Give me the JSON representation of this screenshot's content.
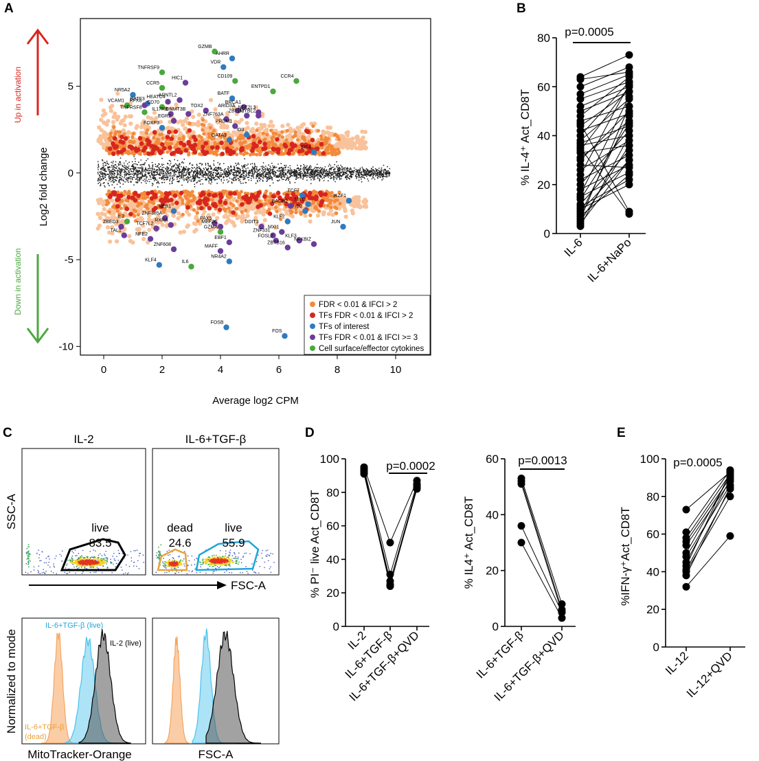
{
  "panel_labels": {
    "A": "A",
    "B": "B",
    "C": "C",
    "D": "D",
    "E": "E"
  },
  "colors": {
    "orange_light": "#f9c29a",
    "orange": "#f28a3c",
    "red": "#d7261e",
    "blue": "#2f7bbf",
    "purple": "#6a3d9a",
    "green": "#4aa83d",
    "black": "#000000",
    "arrow_red": "#d7261e",
    "arrow_green": "#4aa83d",
    "cyan": "#1fa6d9",
    "gate_orange": "#e8a13a"
  },
  "chart_data": [
    {
      "id": "A",
      "type": "scatter",
      "title": "",
      "xlabel": "Average log2 CPM",
      "ylabel": "Log2 fold change",
      "xlim": [
        -0.8,
        11.2
      ],
      "ylim": [
        -10.5,
        8.9
      ],
      "xticks": [
        0,
        2,
        4,
        6,
        8,
        10
      ],
      "yticks": [
        -10,
        -5,
        0,
        5
      ],
      "arrow_up_label": "Up in activation",
      "arrow_down_label": "Down in activation",
      "legend": [
        {
          "label": "FDR < 0.01 & IFCI > 2",
          "color": "orange"
        },
        {
          "label": "TFs FDR < 0.01 & IFCI > 2",
          "color": "red"
        },
        {
          "label": "TFs of interest",
          "color": "blue"
        },
        {
          "label": "TFs FDR < 0.01 & IFCI >= 3",
          "color": "purple"
        },
        {
          "label": "Cell surface/effector cytokines",
          "color": "green"
        }
      ],
      "genes": [
        {
          "name": "GZMB",
          "x": 3.8,
          "y": 7.0,
          "c": "green"
        },
        {
          "name": "AHRR",
          "x": 4.4,
          "y": 6.6,
          "c": "blue"
        },
        {
          "name": "VDR",
          "x": 4.1,
          "y": 6.1,
          "c": "blue"
        },
        {
          "name": "TNFRSF9",
          "x": 2.0,
          "y": 5.8,
          "c": "green"
        },
        {
          "name": "CCR4",
          "x": 6.6,
          "y": 5.3,
          "c": "green"
        },
        {
          "name": "HIC1",
          "x": 2.8,
          "y": 5.2,
          "c": "purple"
        },
        {
          "name": "CD109",
          "x": 4.5,
          "y": 5.3,
          "c": "green"
        },
        {
          "name": "CCR5",
          "x": 2.0,
          "y": 4.9,
          "c": "green"
        },
        {
          "name": "ENTPD1",
          "x": 5.8,
          "y": 4.7,
          "c": "green"
        },
        {
          "name": "NR5A2",
          "x": 1.0,
          "y": 4.5,
          "c": "blue"
        },
        {
          "name": "ARNTL2",
          "x": 2.6,
          "y": 4.2,
          "c": "purple"
        },
        {
          "name": "BATF",
          "x": 4.4,
          "y": 4.3,
          "c": "blue"
        },
        {
          "name": "HEATC4",
          "x": 2.2,
          "y": 4.1,
          "c": "purple"
        },
        {
          "name": "BATF3",
          "x": 1.5,
          "y": 4.0,
          "c": "blue"
        },
        {
          "name": "BRCA1",
          "x": 4.8,
          "y": 3.8,
          "c": "purple"
        },
        {
          "name": "VCAM1",
          "x": 0.8,
          "y": 3.9,
          "c": "green"
        },
        {
          "name": "RFX8",
          "x": 1.4,
          "y": 3.9,
          "c": "purple"
        },
        {
          "name": "CD70",
          "x": 2.0,
          "y": 3.8,
          "c": "green"
        },
        {
          "name": "TOX2",
          "x": 3.5,
          "y": 3.6,
          "c": "purple"
        },
        {
          "name": "ARID3A",
          "x": 4.6,
          "y": 3.6,
          "c": "purple"
        },
        {
          "name": "NFE2L3",
          "x": 5.3,
          "y": 3.5,
          "c": "purple"
        },
        {
          "name": "TNFRSF8",
          "x": 1.4,
          "y": 3.5,
          "c": "green"
        },
        {
          "name": "IL17RB",
          "x": 2.3,
          "y": 3.4,
          "c": "purple"
        },
        {
          "name": "DNMT3B",
          "x": 2.9,
          "y": 3.4,
          "c": "purple"
        },
        {
          "name": "ZBED2",
          "x": 4.9,
          "y": 3.3,
          "c": "purple"
        },
        {
          "name": "MYBL2",
          "x": 5.3,
          "y": 3.3,
          "c": "purple"
        },
        {
          "name": "EGR2",
          "x": 2.4,
          "y": 3.0,
          "c": "purple"
        },
        {
          "name": "ZNF763A",
          "x": 4.2,
          "y": 3.1,
          "c": "purple"
        },
        {
          "name": "PRDM1",
          "x": 4.5,
          "y": 2.7,
          "c": "purple"
        },
        {
          "name": "FOXP3",
          "x": 2.0,
          "y": 2.6,
          "c": "blue"
        },
        {
          "name": "ID3",
          "x": 4.9,
          "y": 2.2,
          "c": "blue"
        },
        {
          "name": "GATA3",
          "x": 4.3,
          "y": 1.9,
          "c": "blue"
        },
        {
          "name": "IRF4",
          "x": 7.2,
          "y": 1.2,
          "c": "blue"
        },
        {
          "name": "TCF7",
          "x": 6.8,
          "y": -1.3,
          "c": "blue"
        },
        {
          "name": "BACH2",
          "x": 6.4,
          "y": -1.9,
          "c": "purple"
        },
        {
          "name": "MYC",
          "x": 7.0,
          "y": -1.8,
          "c": "blue"
        },
        {
          "name": "ID2",
          "x": 6.9,
          "y": -2.2,
          "c": "blue"
        },
        {
          "name": "IKZF1",
          "x": 8.4,
          "y": -1.6,
          "c": "blue"
        },
        {
          "name": "NEB1",
          "x": 2.4,
          "y": -2.2,
          "c": "blue"
        },
        {
          "name": "ZNF385A",
          "x": 2.1,
          "y": -2.6,
          "c": "purple"
        },
        {
          "name": "IL7",
          "x": 0.8,
          "y": -2.8,
          "c": "green"
        },
        {
          "name": "RXRA",
          "x": 2.3,
          "y": -3.0,
          "c": "purple"
        },
        {
          "name": "ZBED3",
          "x": 0.6,
          "y": -3.1,
          "c": "purple"
        },
        {
          "name": "TCF7L2",
          "x": 1.8,
          "y": -3.2,
          "c": "purple"
        },
        {
          "name": "PAX5",
          "x": 3.8,
          "y": -2.9,
          "c": "purple"
        },
        {
          "name": "MEF2C",
          "x": 4.0,
          "y": -3.1,
          "c": "purple"
        },
        {
          "name": "DDIT3",
          "x": 5.4,
          "y": -3.1,
          "c": "purple"
        },
        {
          "name": "KLF2",
          "x": 6.3,
          "y": -2.8,
          "c": "blue"
        },
        {
          "name": "JUN",
          "x": 8.2,
          "y": -3.1,
          "c": "blue"
        },
        {
          "name": "TAL1",
          "x": 0.7,
          "y": -3.6,
          "c": "purple"
        },
        {
          "name": "NFE2",
          "x": 1.6,
          "y": -3.8,
          "c": "purple"
        },
        {
          "name": "GZMA",
          "x": 4.0,
          "y": -3.4,
          "c": "green"
        },
        {
          "name": "MXI1",
          "x": 6.1,
          "y": -3.4,
          "c": "purple"
        },
        {
          "name": "ZNF331",
          "x": 5.8,
          "y": -3.6,
          "c": "purple"
        },
        {
          "name": "FOSL2",
          "x": 5.9,
          "y": -3.9,
          "c": "purple"
        },
        {
          "name": "KLF3",
          "x": 6.7,
          "y": -3.9,
          "c": "purple"
        },
        {
          "name": "NFKBIZ",
          "x": 7.2,
          "y": -4.1,
          "c": "purple"
        },
        {
          "name": "EBF1",
          "x": 4.3,
          "y": -4.0,
          "c": "purple"
        },
        {
          "name": "ZBTB16",
          "x": 6.3,
          "y": -4.3,
          "c": "purple"
        },
        {
          "name": "MAFF",
          "x": 4.0,
          "y": -4.5,
          "c": "purple"
        },
        {
          "name": "ZNF608",
          "x": 2.4,
          "y": -4.4,
          "c": "purple"
        },
        {
          "name": "NR4A2",
          "x": 4.3,
          "y": -5.1,
          "c": "blue"
        },
        {
          "name": "KLF4",
          "x": 1.9,
          "y": -5.3,
          "c": "blue"
        },
        {
          "name": "IL6",
          "x": 3.0,
          "y": -5.4,
          "c": "green"
        },
        {
          "name": "FOSB",
          "x": 4.2,
          "y": -8.9,
          "c": "blue"
        },
        {
          "name": "FOS",
          "x": 6.2,
          "y": -9.4,
          "c": "blue"
        }
      ]
    },
    {
      "id": "B",
      "type": "paired_dot",
      "ylabel": "% IL-4⁺ Act_CD8T",
      "ylim": [
        0,
        80
      ],
      "yticks": [
        0,
        20,
        40,
        60,
        80
      ],
      "categories": [
        "IL-6",
        "IL-6+NaPo"
      ],
      "pvalue": "p=0.0005",
      "pairs": [
        [
          64,
          73
        ],
        [
          63,
          66
        ],
        [
          57,
          65
        ],
        [
          55,
          62
        ],
        [
          52,
          60
        ],
        [
          48,
          64
        ],
        [
          46,
          52
        ],
        [
          44,
          58
        ],
        [
          42,
          49
        ],
        [
          40,
          62
        ],
        [
          38,
          55
        ],
        [
          37,
          44
        ],
        [
          36,
          40
        ],
        [
          34,
          60
        ],
        [
          33,
          36
        ],
        [
          31,
          46
        ],
        [
          30,
          50
        ],
        [
          28,
          27
        ],
        [
          26,
          38
        ],
        [
          24,
          61
        ],
        [
          22,
          32
        ],
        [
          20,
          42
        ],
        [
          18,
          28
        ],
        [
          16,
          56
        ],
        [
          15,
          25
        ],
        [
          14,
          45
        ],
        [
          12,
          34
        ],
        [
          11,
          22
        ],
        [
          10,
          20
        ],
        [
          9,
          30
        ],
        [
          8,
          48
        ],
        [
          7,
          24
        ],
        [
          6,
          52
        ],
        [
          5,
          36
        ],
        [
          4,
          30
        ],
        [
          3,
          40
        ],
        [
          45,
          9
        ],
        [
          35,
          8
        ],
        [
          50,
          58
        ],
        [
          60,
          68
        ]
      ]
    },
    {
      "id": "C",
      "type": "flow_cytometry",
      "top_titles": [
        "IL-2",
        "IL-6+TGF-β"
      ],
      "ylabel_top": "SSC-A",
      "xlabel_top": "FSC-A",
      "gates": [
        {
          "panel": 0,
          "label": "live",
          "value": "83.5",
          "color": "black"
        },
        {
          "panel": 1,
          "label": "dead",
          "value": "24.6",
          "color": "gate_orange"
        },
        {
          "panel": 1,
          "label": "live",
          "value": "55.9",
          "color": "cyan"
        }
      ],
      "ylabel_bottom": "Normalized to mode",
      "xlabel_bottom_left": "MitoTracker-Orange",
      "xlabel_bottom_right": "FSC-A",
      "hist_labels": {
        "cyan": "IL-6+TGF-β (live)",
        "black": "IL-2 (live)",
        "orange": "IL-6+TGF-β",
        "orange2": "(dead)"
      }
    },
    {
      "id": "D1",
      "type": "paired_dot",
      "ylabel": "% PI⁻ live Act_CD8T",
      "ylim": [
        0,
        100
      ],
      "yticks": [
        0,
        20,
        40,
        60,
        80,
        100
      ],
      "categories": [
        "IL-2",
        "IL-6+TGF-β",
        "IL-6+TGF-β+QVD"
      ],
      "pvalue": "p=0.0002",
      "series": [
        [
          95,
          50,
          87
        ],
        [
          94,
          31,
          85
        ],
        [
          92,
          27,
          83
        ],
        [
          93,
          25,
          82
        ],
        [
          91,
          24,
          84
        ]
      ]
    },
    {
      "id": "D2",
      "type": "paired_dot",
      "ylabel": "% IL4⁺ Act_CD8T",
      "ylim": [
        0,
        60
      ],
      "yticks": [
        0,
        20,
        40,
        60
      ],
      "categories": [
        "IL-6+TGF-β",
        "IL-6+TGF-β+QVD"
      ],
      "pvalue": "p=0.0013",
      "pairs": [
        [
          53,
          8
        ],
        [
          52,
          6
        ],
        [
          51,
          5
        ],
        [
          36,
          5
        ],
        [
          30,
          3
        ]
      ]
    },
    {
      "id": "E",
      "type": "paired_dot",
      "ylabel": "%IFN-γ⁺Act_CD8T",
      "ylim": [
        0,
        100
      ],
      "yticks": [
        0,
        20,
        40,
        60,
        80,
        100
      ],
      "categories": [
        "IL-12",
        "IL-12+QVD"
      ],
      "pvalue": "p=0.0005",
      "pairs": [
        [
          73,
          93
        ],
        [
          61,
          94
        ],
        [
          58,
          92
        ],
        [
          56,
          90
        ],
        [
          54,
          88
        ],
        [
          50,
          91
        ],
        [
          48,
          86
        ],
        [
          45,
          89
        ],
        [
          43,
          93
        ],
        [
          41,
          84
        ],
        [
          40,
          80
        ],
        [
          38,
          85
        ],
        [
          32,
          59
        ]
      ]
    }
  ]
}
